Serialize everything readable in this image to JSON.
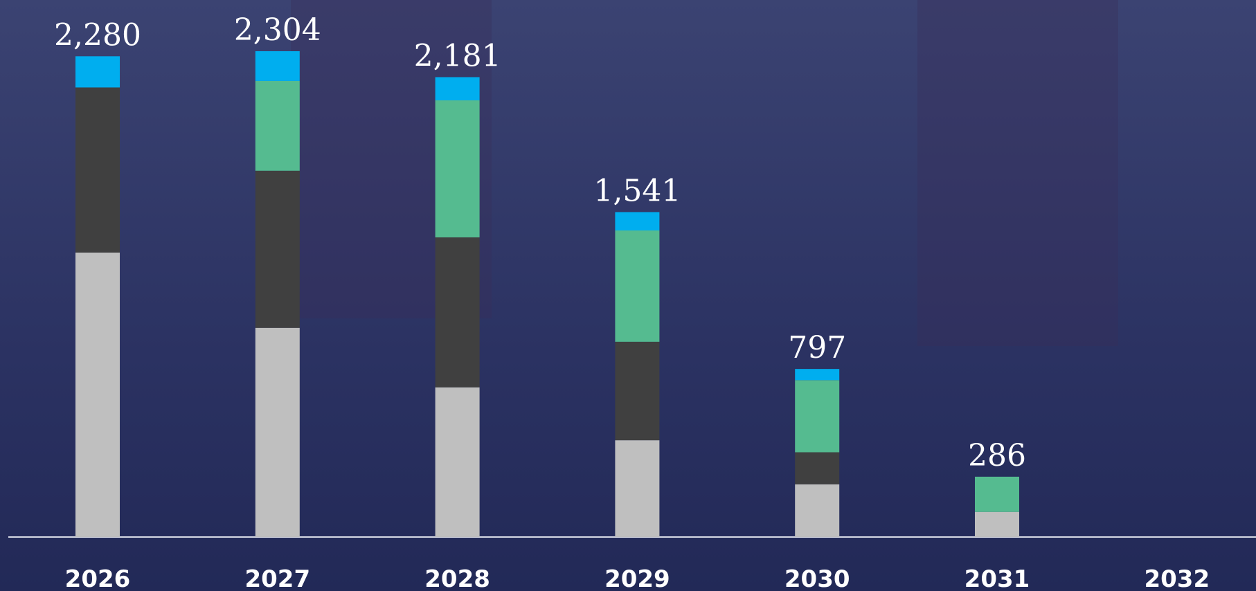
{
  "chart_data": {
    "type": "stacked_bar",
    "categories": [
      "2026",
      "2027",
      "2028",
      "2029",
      "2030",
      "2031",
      "2032"
    ],
    "series": [
      {
        "color": "#bfbfbf",
        "values": [
          1349,
          992,
          710,
          459,
          250,
          119,
          null
        ]
      },
      {
        "color": "#404040",
        "values": [
          783,
          745,
          711,
          467,
          152,
          0,
          null
        ]
      },
      {
        "color": "#55bb90",
        "values": [
          0,
          426,
          650,
          528,
          342,
          167,
          null
        ]
      },
      {
        "color": "#00aeef",
        "values": [
          148,
          141,
          110,
          87,
          53,
          0,
          null
        ]
      }
    ],
    "totals": [
      2280,
      2304,
      2181,
      1541,
      797,
      286,
      null
    ],
    "total_labels": [
      "2,280",
      "2,304",
      "2,181",
      "1,541",
      "797",
      "286",
      null
    ]
  }
}
